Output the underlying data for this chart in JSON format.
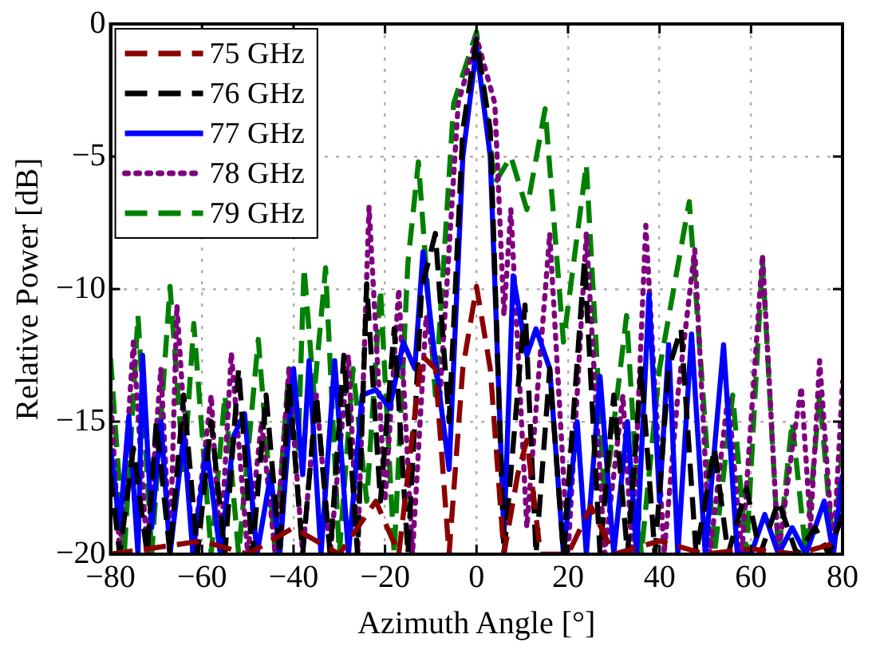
{
  "chart_data": {
    "type": "line",
    "xlabel": "Azimuth Angle [°]",
    "ylabel": "Relative Power [dB]",
    "xlim": [
      -80,
      80
    ],
    "xticks": [
      -80,
      -60,
      -40,
      -20,
      0,
      20,
      40,
      60,
      80
    ],
    "ylim": [
      -20,
      0
    ],
    "yticks": [
      -20,
      -15,
      -10,
      -5,
      0
    ],
    "grid": true,
    "legend": "top left",
    "marker": "none",
    "series": [
      {
        "name": "75 GHz",
        "color": "#8b0000",
        "line_style": "dashed",
        "x": [
          -80,
          -60,
          -50,
          -40,
          -30,
          -22,
          -17,
          -12,
          -9,
          -6,
          -3,
          0,
          3,
          6,
          9,
          11,
          14,
          20,
          25,
          30,
          40,
          50,
          60,
          70,
          80
        ],
        "values": [
          -20,
          -19.5,
          -20,
          -19,
          -20,
          -18,
          -20,
          -12.5,
          -13,
          -20,
          -13,
          -9.9,
          -13,
          -20,
          -17,
          -15.7,
          -20,
          -20,
          -18.2,
          -20,
          -19.5,
          -20,
          -19.8,
          -20,
          -19.5
        ]
      },
      {
        "name": "76 GHz",
        "color": "#000000",
        "line_style": "dashed",
        "x": [
          -80,
          -78,
          -75,
          -72,
          -70,
          -67,
          -64,
          -61,
          -58,
          -55,
          -52,
          -49,
          -46,
          -43,
          -41,
          -38,
          -35,
          -32,
          -29,
          -26,
          -24,
          -21,
          -18,
          -15,
          -12,
          -9,
          -6,
          -3,
          0,
          3,
          6,
          10.6,
          13,
          16,
          19,
          23.6,
          27,
          30,
          33,
          36,
          39,
          42,
          44.7,
          48,
          52,
          55,
          59,
          62,
          66,
          70,
          74,
          77,
          80
        ],
        "values": [
          -17,
          -20,
          -16,
          -20,
          -15,
          -20,
          -14,
          -20,
          -15,
          -20,
          -13,
          -20,
          -14,
          -20,
          -13.5,
          -20,
          -14,
          -20,
          -12.5,
          -20,
          -9.8,
          -18,
          -11.5,
          -20,
          -10,
          -7.9,
          -15,
          -4,
          -0.6,
          -4,
          -20,
          -10.6,
          -20,
          -13,
          -20,
          -8.9,
          -20,
          -14,
          -20,
          -13,
          -20,
          -13,
          -11.5,
          -20,
          -16,
          -20,
          -17.5,
          -20,
          -18,
          -20,
          -19,
          -20,
          -18.5
        ]
      },
      {
        "name": "77 GHz",
        "color": "#0000ff",
        "line_style": "solid",
        "x": [
          -80,
          -78,
          -76,
          -74,
          -73,
          -71,
          -69,
          -67,
          -64,
          -62,
          -59,
          -56,
          -53,
          -50.7,
          -48,
          -45,
          -43,
          -40,
          -38,
          -36.6,
          -34,
          -31,
          -28,
          -25,
          -22,
          -19,
          -16,
          -13.5,
          -11.7,
          -9.5,
          -6,
          -3,
          0,
          3,
          6,
          8,
          11,
          13,
          16,
          19,
          22,
          24,
          27,
          30,
          33,
          35,
          37.7,
          40,
          42,
          44,
          47,
          50,
          54,
          57,
          60,
          63,
          66,
          69,
          72,
          76,
          78,
          80
        ],
        "values": [
          -16,
          -19,
          -14.8,
          -20,
          -12.5,
          -19,
          -15,
          -20,
          -15.5,
          -20,
          -16,
          -20,
          -15.5,
          -14.7,
          -20,
          -17,
          -20,
          -13,
          -17,
          -12.7,
          -20,
          -12.7,
          -20,
          -14,
          -13.8,
          -14.5,
          -12,
          -13,
          -8.6,
          -12,
          -16.8,
          -5,
          -0.9,
          -5,
          -19.3,
          -9.5,
          -12.5,
          -11.5,
          -13,
          -20,
          -15,
          -20,
          -13.3,
          -20,
          -15,
          -20,
          -10.2,
          -18,
          -12.1,
          -20,
          -11.7,
          -20,
          -12.1,
          -20,
          -20,
          -18.5,
          -20,
          -19,
          -20,
          -18,
          -20,
          -17
        ]
      },
      {
        "name": "78 GHz",
        "color": "#800080",
        "line_style": "dotted",
        "x": [
          -80,
          -78,
          -75,
          -72,
          -69,
          -67,
          -65.5,
          -62,
          -58,
          -56,
          -53.6,
          -50,
          -47,
          -44,
          -41,
          -38,
          -35,
          -32,
          -28,
          -26,
          -23.5,
          -20,
          -17,
          -14,
          -11,
          -8,
          -4,
          0,
          4,
          6,
          7.5,
          11,
          16,
          20,
          24,
          28,
          32,
          34,
          37,
          41,
          44,
          47.7,
          51,
          55,
          58,
          62.5,
          66,
          69,
          71,
          73,
          75,
          78,
          80
        ],
        "values": [
          -14,
          -20,
          -12,
          -20,
          -13,
          -20,
          -10.6,
          -20,
          -14,
          -20,
          -12.4,
          -20,
          -15,
          -20,
          -13,
          -20,
          -14,
          -20,
          -12.5,
          -20,
          -6.9,
          -18,
          -10,
          -20,
          -11,
          -14,
          -3,
          -0.5,
          -3,
          -11,
          -7,
          -19,
          -7.9,
          -20,
          -7.9,
          -20,
          -14,
          -20,
          -7.6,
          -20,
          -14,
          -8.5,
          -20,
          -14,
          -20,
          -8.7,
          -20,
          -16,
          -13.7,
          -19,
          -12.7,
          -20,
          -13.5
        ]
      },
      {
        "name": "79 GHz",
        "color": "#008000",
        "line_style": "dashed",
        "x": [
          -80,
          -77,
          -74,
          -71,
          -67,
          -64,
          -61.8,
          -58,
          -55,
          -52,
          -47.7,
          -44,
          -41,
          -39,
          -37.7,
          -35.5,
          -33,
          -30,
          -27,
          -24,
          -21,
          -18,
          -15,
          -12.7,
          -9,
          -5,
          0,
          4,
          7.5,
          11,
          15,
          19,
          24,
          28,
          32.8,
          36,
          40,
          46.5,
          52,
          56,
          59,
          62.5,
          66,
          69,
          72,
          75,
          78,
          80
        ],
        "values": [
          -12.6,
          -20,
          -11,
          -20,
          -9.9,
          -17,
          -11.3,
          -20,
          -14,
          -20,
          -11.9,
          -20,
          -13,
          -16,
          -9.2,
          -14,
          -9.2,
          -20,
          -13,
          -18,
          -10,
          -20,
          -9,
          -5.2,
          -14,
          -3,
          -0.3,
          -6,
          -5,
          -7,
          -3.2,
          -12,
          -5.3,
          -18,
          -11,
          -20,
          -13,
          -6.7,
          -20,
          -14,
          -20,
          -8.9,
          -20,
          -15,
          -20,
          -14,
          -20,
          -16
        ]
      }
    ]
  }
}
